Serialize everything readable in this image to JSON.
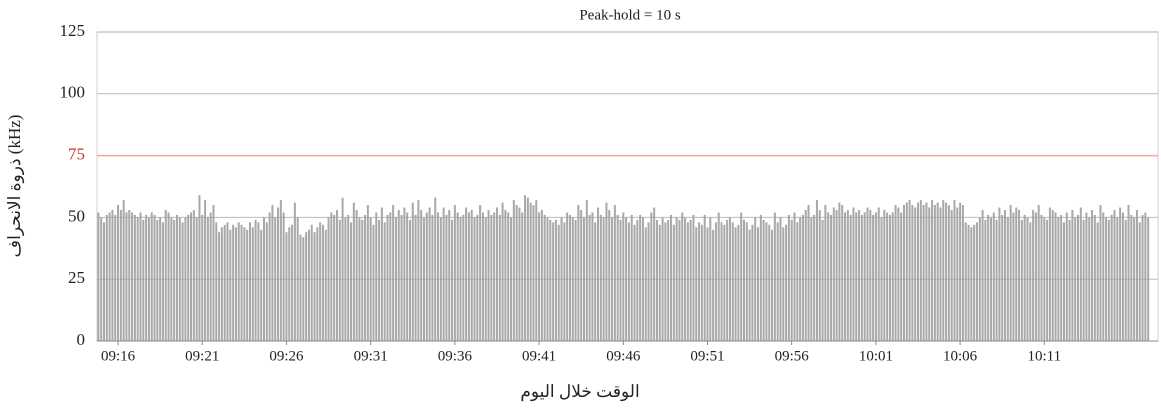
{
  "chart_data": {
    "type": "bar",
    "title": "Peak-hold = 10 s",
    "y_label": "ذروة الانحراف (kHz)",
    "x_label": "الوقت خلال اليوم",
    "ylim": [
      0,
      125
    ],
    "yticks": [
      0,
      25,
      50,
      75,
      100,
      125
    ],
    "grid": true,
    "threshold": 75,
    "threshold_color": "#f4a6a0",
    "threshold_label_color": "#c0392b",
    "color": "#a9a9a9",
    "categories": [
      null,
      null,
      null,
      null,
      null,
      null,
      null,
      "09:16",
      null,
      null,
      null,
      null,
      null,
      null,
      null,
      null,
      null,
      null,
      null,
      null,
      null,
      null,
      null,
      null,
      null,
      null,
      null,
      null,
      null,
      null,
      null,
      null,
      null,
      null,
      null,
      null,
      null,
      "09:21",
      null,
      null,
      null,
      null,
      null,
      null,
      null,
      null,
      null,
      null,
      null,
      null,
      null,
      null,
      null,
      null,
      null,
      null,
      null,
      null,
      null,
      null,
      null,
      null,
      null,
      null,
      null,
      null,
      null,
      "09:26",
      null,
      null,
      null,
      null,
      null,
      null,
      null,
      null,
      null,
      null,
      null,
      null,
      null,
      null,
      null,
      null,
      null,
      null,
      null,
      null,
      null,
      null,
      null,
      null,
      null,
      null,
      null,
      null,
      null,
      "09:31",
      null,
      null,
      null,
      null,
      null,
      null,
      null,
      null,
      null,
      null,
      null,
      null,
      null,
      null,
      null,
      null,
      null,
      null,
      null,
      null,
      null,
      null,
      null,
      null,
      null,
      null,
      null,
      null,
      null,
      "09:36",
      null,
      null,
      null,
      null,
      null,
      null,
      null,
      null,
      null,
      null,
      null,
      null,
      null,
      null,
      null,
      null,
      null,
      null,
      null,
      null,
      null,
      null,
      null,
      null,
      null,
      null,
      null,
      null,
      null,
      "09:41",
      null,
      null,
      null,
      null,
      null,
      null,
      null,
      null,
      null,
      null,
      null,
      null,
      null,
      null,
      null,
      null,
      null,
      null,
      null,
      null,
      null,
      null,
      null,
      null,
      null,
      null,
      null,
      null,
      null,
      "09:46",
      null,
      null,
      null,
      null,
      null,
      null,
      null,
      null,
      null,
      null,
      null,
      null,
      null,
      null,
      null,
      null,
      null,
      null,
      null,
      null,
      null,
      null,
      null,
      null,
      null,
      null,
      null,
      null,
      null,
      "09:51",
      null,
      null,
      null,
      null,
      null,
      null,
      null,
      null,
      null,
      null,
      null,
      null,
      null,
      null,
      null,
      null,
      null,
      null,
      null,
      null,
      null,
      null,
      null,
      null,
      null,
      null,
      null,
      null,
      null,
      "09:56",
      null,
      null,
      null,
      null,
      null,
      null,
      null,
      null,
      null,
      null,
      null,
      null,
      null,
      null,
      null,
      null,
      null,
      null,
      null,
      null,
      null,
      null,
      null,
      null,
      null,
      null,
      null,
      null,
      null,
      "10:01",
      null,
      null,
      null,
      null,
      null,
      null,
      null,
      null,
      null,
      null,
      null,
      null,
      null,
      null,
      null,
      null,
      null,
      null,
      null,
      null,
      null,
      null,
      null,
      null,
      null,
      null,
      null,
      null,
      null,
      "10:06",
      null,
      null,
      null,
      null,
      null,
      null,
      null,
      null,
      null,
      null,
      null,
      null,
      null,
      null,
      null,
      null,
      null,
      null,
      null,
      null,
      null,
      null,
      null,
      null,
      null,
      null,
      null,
      null,
      null,
      "10:11",
      null,
      null,
      null,
      null,
      null,
      null,
      null,
      null,
      null,
      null,
      null,
      null,
      null,
      null,
      null,
      null,
      null,
      null,
      null,
      null,
      null,
      null,
      null,
      null,
      null,
      null,
      null,
      null,
      null,
      null,
      null,
      null,
      null,
      null,
      null,
      null,
      null
    ],
    "values": [
      52,
      50,
      48,
      51,
      52,
      53,
      51,
      55,
      53,
      57,
      52,
      53,
      52,
      51,
      50,
      52,
      49,
      51,
      50,
      52,
      51,
      49,
      50,
      48,
      53,
      52,
      50,
      49,
      51,
      50,
      48,
      50,
      51,
      52,
      53,
      50,
      59,
      51,
      57,
      50,
      52,
      55,
      48,
      44,
      46,
      47,
      48,
      45,
      47,
      46,
      48,
      47,
      46,
      45,
      48,
      46,
      49,
      48,
      45,
      50,
      48,
      52,
      55,
      50,
      54,
      57,
      52,
      44,
      46,
      47,
      56,
      50,
      43,
      42,
      44,
      45,
      47,
      44,
      46,
      48,
      47,
      45,
      50,
      52,
      51,
      53,
      49,
      58,
      50,
      51,
      48,
      56,
      53,
      50,
      49,
      51,
      55,
      50,
      47,
      52,
      49,
      54,
      48,
      51,
      52,
      55,
      50,
      53,
      51,
      54,
      52,
      49,
      56,
      51,
      57,
      53,
      50,
      52,
      54,
      51,
      58,
      52,
      50,
      54,
      51,
      53,
      49,
      55,
      52,
      50,
      51,
      54,
      52,
      53,
      50,
      51,
      55,
      52,
      50,
      53,
      51,
      52,
      54,
      51,
      56,
      53,
      52,
      50,
      57,
      55,
      54,
      52,
      59,
      58,
      56,
      55,
      57,
      52,
      53,
      51,
      50,
      49,
      48,
      49,
      47,
      50,
      48,
      52,
      51,
      50,
      49,
      55,
      53,
      50,
      57,
      51,
      52,
      48,
      54,
      51,
      50,
      56,
      53,
      50,
      55,
      51,
      49,
      52,
      50,
      48,
      51,
      47,
      49,
      51,
      50,
      46,
      48,
      52,
      54,
      49,
      47,
      50,
      48,
      49,
      51,
      47,
      50,
      49,
      52,
      50,
      48,
      49,
      51,
      46,
      48,
      47,
      51,
      46,
      50,
      45,
      48,
      52,
      48,
      47,
      49,
      50,
      48,
      46,
      47,
      52,
      49,
      48,
      45,
      47,
      50,
      46,
      51,
      49,
      48,
      47,
      45,
      52,
      48,
      50,
      46,
      47,
      51,
      49,
      52,
      48,
      50,
      51,
      53,
      55,
      50,
      51,
      57,
      53,
      49,
      55,
      52,
      51,
      54,
      53,
      56,
      55,
      52,
      53,
      51,
      54,
      52,
      53,
      51,
      52,
      54,
      53,
      51,
      52,
      54,
      50,
      53,
      52,
      51,
      52,
      55,
      54,
      52,
      55,
      56,
      57,
      55,
      54,
      56,
      57,
      55,
      56,
      54,
      57,
      55,
      56,
      54,
      57,
      56,
      55,
      53,
      57,
      54,
      56,
      55,
      48,
      47,
      46,
      47,
      48,
      50,
      53,
      49,
      51,
      50,
      52,
      49,
      54,
      51,
      53,
      50,
      55,
      52,
      54,
      53,
      49,
      51,
      50,
      48,
      53,
      52,
      55,
      51,
      50,
      49,
      54,
      53,
      52,
      50,
      51,
      48,
      52,
      49,
      53,
      50,
      51,
      54,
      49,
      52,
      50,
      53,
      51,
      48,
      55,
      52,
      50,
      49,
      51,
      53,
      50,
      54,
      52,
      49,
      55,
      51,
      50,
      53,
      48,
      51,
      52,
      50
    ]
  }
}
